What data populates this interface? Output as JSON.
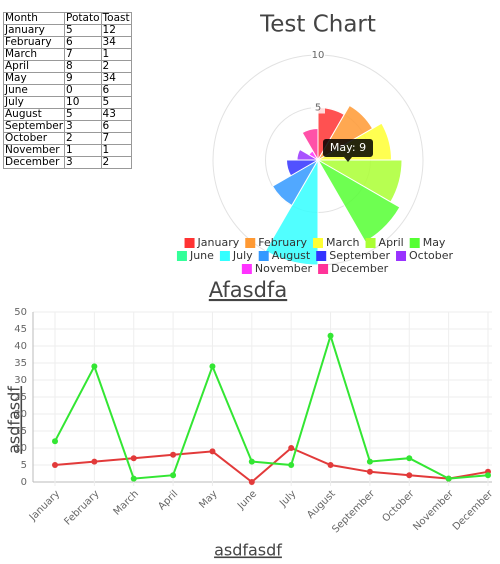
{
  "table": {
    "header": [
      "Month",
      "Potato",
      "Toast"
    ],
    "rows": [
      [
        "January",
        5,
        12
      ],
      [
        "February",
        6,
        34
      ],
      [
        "March",
        7,
        1
      ],
      [
        "April",
        8,
        2
      ],
      [
        "May",
        9,
        34
      ],
      [
        "June",
        0,
        6
      ],
      [
        "July",
        10,
        5
      ],
      [
        "August",
        5,
        43
      ],
      [
        "September",
        3,
        6
      ],
      [
        "October",
        2,
        7
      ],
      [
        "November",
        1,
        1
      ],
      [
        "December",
        3,
        2
      ]
    ]
  },
  "chart_data": [
    {
      "type": "polarArea",
      "title": "Test Chart",
      "categories": [
        "January",
        "February",
        "March",
        "April",
        "May",
        "June",
        "July",
        "August",
        "September",
        "October",
        "November",
        "December"
      ],
      "values": [
        5,
        6,
        7,
        8,
        9,
        0,
        10,
        5,
        3,
        2,
        1,
        3
      ],
      "colors": [
        "#ff3333",
        "#ff9933",
        "#ffff33",
        "#aaff33",
        "#55ff33",
        "#33ff99",
        "#33ffff",
        "#3399ff",
        "#3333ff",
        "#9933ff",
        "#ff33ff",
        "#ff3399"
      ],
      "rlim": [
        0,
        10
      ],
      "rticks": [
        5,
        10
      ],
      "annotation": "May: 9"
    },
    {
      "type": "line",
      "title": "Afasdfa",
      "x_label": "asdfasdf",
      "y_label": "asdfasdf",
      "categories": [
        "January",
        "February",
        "March",
        "April",
        "May",
        "June",
        "July",
        "August",
        "September",
        "October",
        "November",
        "December"
      ],
      "series": [
        {
          "color": "#e23a3a",
          "values": [
            5,
            6,
            7,
            8,
            9,
            0,
            10,
            5,
            3,
            2,
            1,
            3
          ]
        },
        {
          "color": "#33e633",
          "values": [
            12,
            34,
            1,
            2,
            34,
            6,
            5,
            43,
            6,
            7,
            1,
            2
          ]
        }
      ],
      "ylim": [
        0,
        50
      ],
      "yticks": [
        0,
        5,
        10,
        15,
        20,
        25,
        30,
        35,
        40,
        45,
        50
      ],
      "grid": true
    }
  ]
}
